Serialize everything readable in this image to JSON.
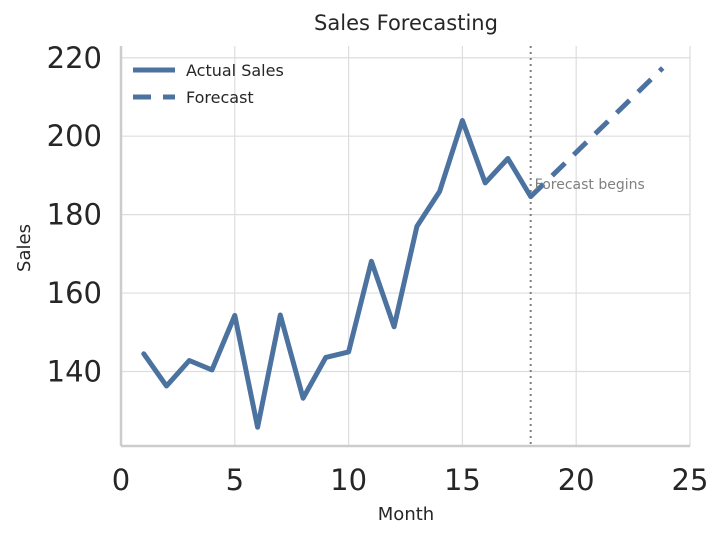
{
  "chart_data": {
    "type": "line",
    "title": "Sales Forecasting",
    "xlabel": "Month",
    "ylabel": "Sales",
    "xlim": [
      0,
      25
    ],
    "ylim": [
      121,
      223
    ],
    "xticks": [
      0,
      5,
      10,
      15,
      20,
      25
    ],
    "yticks": [
      140,
      160,
      180,
      200,
      220
    ],
    "grid": true,
    "legend_position": "top-left",
    "series": [
      {
        "name": "Actual Sales",
        "style": "solid",
        "color": "#4c72a0",
        "x": [
          1,
          2,
          3,
          4,
          5,
          6,
          7,
          8,
          9,
          10,
          11,
          12,
          13,
          14,
          15,
          16,
          17,
          18
        ],
        "y": [
          144.5,
          136.3,
          142.8,
          140.4,
          154.3,
          125.8,
          154.4,
          133.2,
          143.6,
          145.0,
          168.1,
          151.4,
          177.0,
          185.9,
          204.0,
          188.1,
          194.3,
          184.6
        ]
      },
      {
        "name": "Forecast",
        "style": "dashed",
        "color": "#4c72a0",
        "x": [
          18,
          23.8
        ],
        "y": [
          184.6,
          217.4
        ]
      }
    ],
    "annotations": [
      {
        "text": "Forecast begins",
        "x": 18,
        "y": 187.5,
        "vline_x": 18
      }
    ]
  }
}
